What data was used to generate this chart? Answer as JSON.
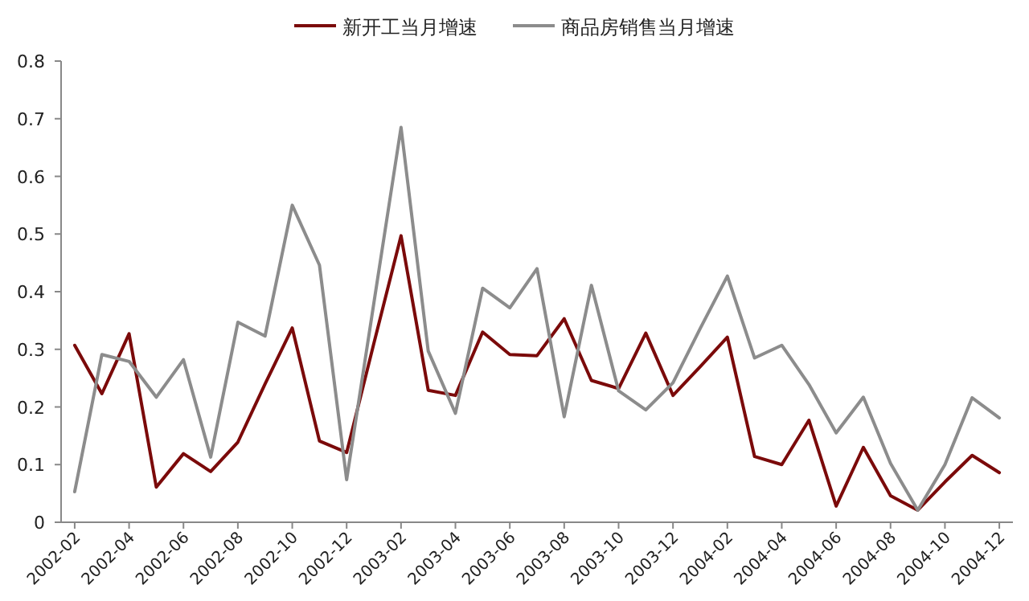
{
  "chart_data": {
    "type": "line",
    "categories": [
      "2002-02",
      null,
      "2002-04",
      null,
      "2002-06",
      null,
      "2002-08",
      null,
      "2002-10",
      null,
      "2002-12",
      null,
      "2003-02",
      null,
      "2003-04",
      null,
      "2003-06",
      null,
      "2003-08",
      null,
      "2003-10",
      null,
      "2003-12",
      null,
      "2004-02",
      null,
      "2004-04",
      null,
      "2004-06",
      null,
      "2004-08",
      null,
      "2004-10",
      null,
      "2004-12"
    ],
    "series": [
      {
        "name": "新开工当月增速",
        "color": "#7b0a0a",
        "values": [
          0.307,
          0.223,
          0.327,
          0.061,
          0.119,
          0.088,
          0.139,
          0.24,
          0.337,
          0.141,
          0.121,
          0.31,
          0.497,
          0.229,
          0.22,
          0.33,
          0.291,
          0.289,
          0.353,
          0.246,
          0.232,
          0.328,
          0.22,
          0.27,
          0.321,
          0.114,
          0.1,
          0.177,
          0.028,
          0.13,
          0.046,
          0.021,
          0.07,
          0.116,
          0.086
        ]
      },
      {
        "name": "商品房销售当月增速",
        "color": "#8c8c8c",
        "values": [
          0.053,
          0.291,
          0.279,
          0.217,
          0.282,
          0.113,
          0.347,
          0.323,
          0.55,
          0.446,
          0.074,
          0.38,
          0.685,
          0.297,
          0.189,
          0.406,
          0.372,
          0.44,
          0.183,
          0.411,
          0.228,
          0.195,
          0.242,
          0.336,
          0.427,
          0.285,
          0.307,
          0.239,
          0.155,
          0.217,
          0.102,
          0.021,
          0.1,
          0.216,
          0.181
        ]
      }
    ],
    "ylim": [
      0,
      0.8
    ],
    "yticks": [
      0,
      0.1,
      0.2,
      0.3,
      0.4,
      0.5,
      0.6,
      0.7,
      0.8
    ],
    "legend": "top"
  }
}
